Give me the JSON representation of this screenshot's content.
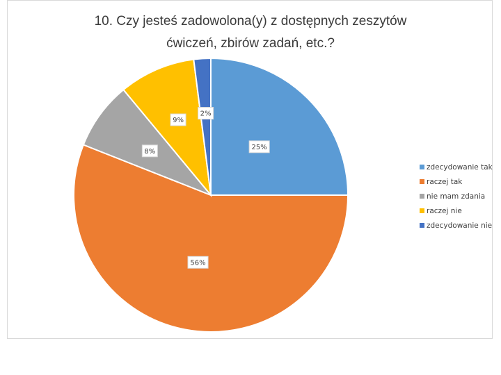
{
  "chart_data": {
    "type": "pie",
    "title_lines": [
      "10. Czy jesteś zadowolona(y) z dostępnych zeszytów",
      "ćwiczeń, zbirów zadań, etc.?"
    ],
    "categories": [
      "zdecydowanie tak",
      "raczej tak",
      "nie mam zdania",
      "raczej nie",
      "zdecydowanie nie"
    ],
    "values": [
      25,
      56,
      8,
      9,
      2
    ],
    "labels": [
      "25%",
      "56%",
      "8%",
      "9%",
      "2%"
    ],
    "colors": [
      "#5b9bd5",
      "#ed7d31",
      "#a5a5a5",
      "#ffc000",
      "#4472c4"
    ],
    "legend_position": "right"
  }
}
